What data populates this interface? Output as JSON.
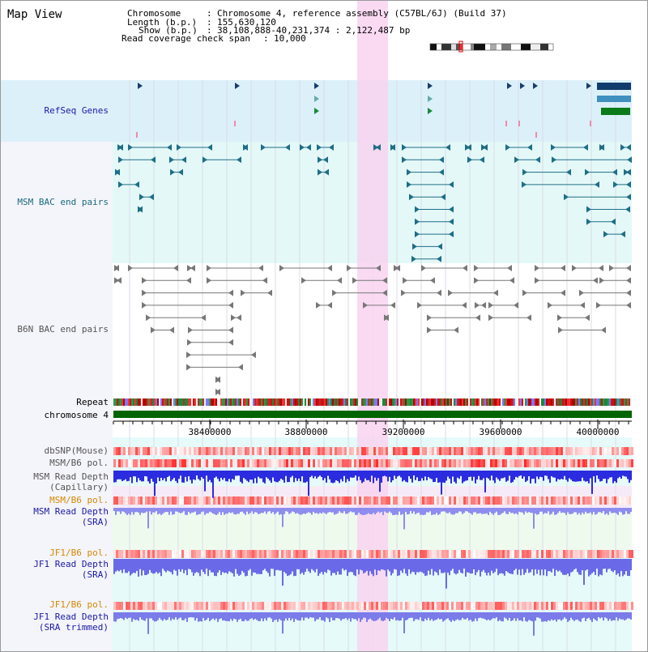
{
  "map_view_title": "Map View",
  "header": {
    "chromosome_label": "Chromosome",
    "chromosome_value": "Chromosome 4, reference assembly (C57BL/6J) (Build 37)",
    "length_label": "Length (b.p.)",
    "length_value": "155,630,120",
    "show_label": "Show (b.p.)",
    "show_value": "38,108,888-40,231,374 : 2,122,487 bp",
    "span_label": "Read coverage check span",
    "span_value": "10,000"
  },
  "tracks": {
    "refseq": "RefSeq Genes",
    "msm_bac": "MSM BAC end pairs",
    "b6n_bac": "B6N BAC end pairs",
    "repeat": "Repeat",
    "chromosome": "chromosome 4",
    "dbsnp": "dbSNP(Mouse)",
    "msm_b6_pol": "MSM/B6 pol.",
    "msm_read_depth_cap_1": "MSM Read Depth",
    "msm_read_depth_cap_2": "(Capillary)",
    "msm_b6_pol_2": "MSM/B6 pol.",
    "msm_read_depth_sra_1": "MSM Read Depth",
    "msm_read_depth_sra_2": "(SRA)",
    "jf1_b6_pol": "JF1/B6 pol.",
    "jf1_read_depth_sra_1": "JF1 Read Depth",
    "jf1_read_depth_sra_2": "(SRA)",
    "jf1_b6_pol_2": "JF1/B6 pol.",
    "jf1_read_depth_trim_1": "JF1 Read Depth",
    "jf1_read_depth_trim_2": "(SRA trimmed)"
  },
  "axis_ticks": [
    "38400000",
    "38800000",
    "39200000",
    "39600000",
    "40000000"
  ],
  "colors": {
    "navy_label": "#1a1aa6",
    "teal_label": "#1a6b7f",
    "orange_label": "#d48a00",
    "highlight": "#f8d4f0",
    "refseq_bg": "#dcf0fa",
    "bac_bg": "#e4f8f8",
    "chromosome_bar": "#006400"
  }
}
